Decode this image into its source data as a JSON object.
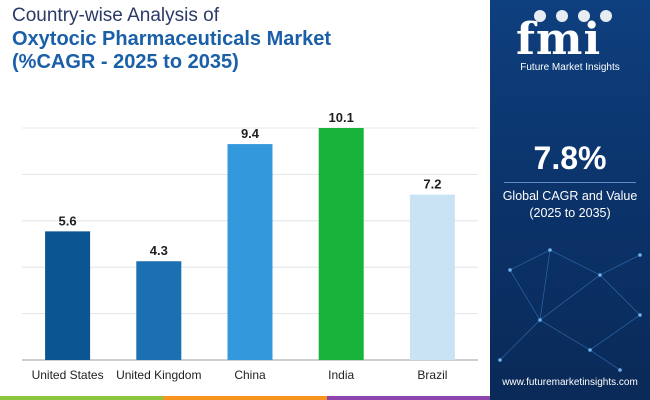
{
  "header": {
    "line1": "Country-wise Analysis of",
    "line2": "Oxytocic Pharmaceuticals Market",
    "line3": "(%CAGR - 2025 to 2035)"
  },
  "chart_data": {
    "type": "bar",
    "categories": [
      "United States",
      "United Kingdom",
      "China",
      "India",
      "Brazil"
    ],
    "values": [
      5.6,
      4.3,
      9.4,
      10.1,
      7.2
    ],
    "labels": [
      "5.6",
      "4.3",
      "9.4",
      "10.1",
      "7.2"
    ],
    "colors": [
      "#0b5592",
      "#1a70b0",
      "#3498dc",
      "#17b33a",
      "#c9e3f5"
    ],
    "title": "Oxytocic Pharmaceuticals Market (%CAGR - 2025 to 2035)",
    "xlabel": "",
    "ylabel": "",
    "ylim": [
      0,
      10.1
    ],
    "grid": true
  },
  "side_panel": {
    "logo": "fmi",
    "logo_sub": "Future Market Insights",
    "cagr_value": "7.8%",
    "cagr_label_line1": "Global CAGR and Value",
    "cagr_label_line2": "(2025 to 2035)",
    "website": "www.futuremarketinsights.com"
  },
  "strip_colors": [
    "#8cc63f",
    "#f7941d",
    "#8e44ad"
  ]
}
